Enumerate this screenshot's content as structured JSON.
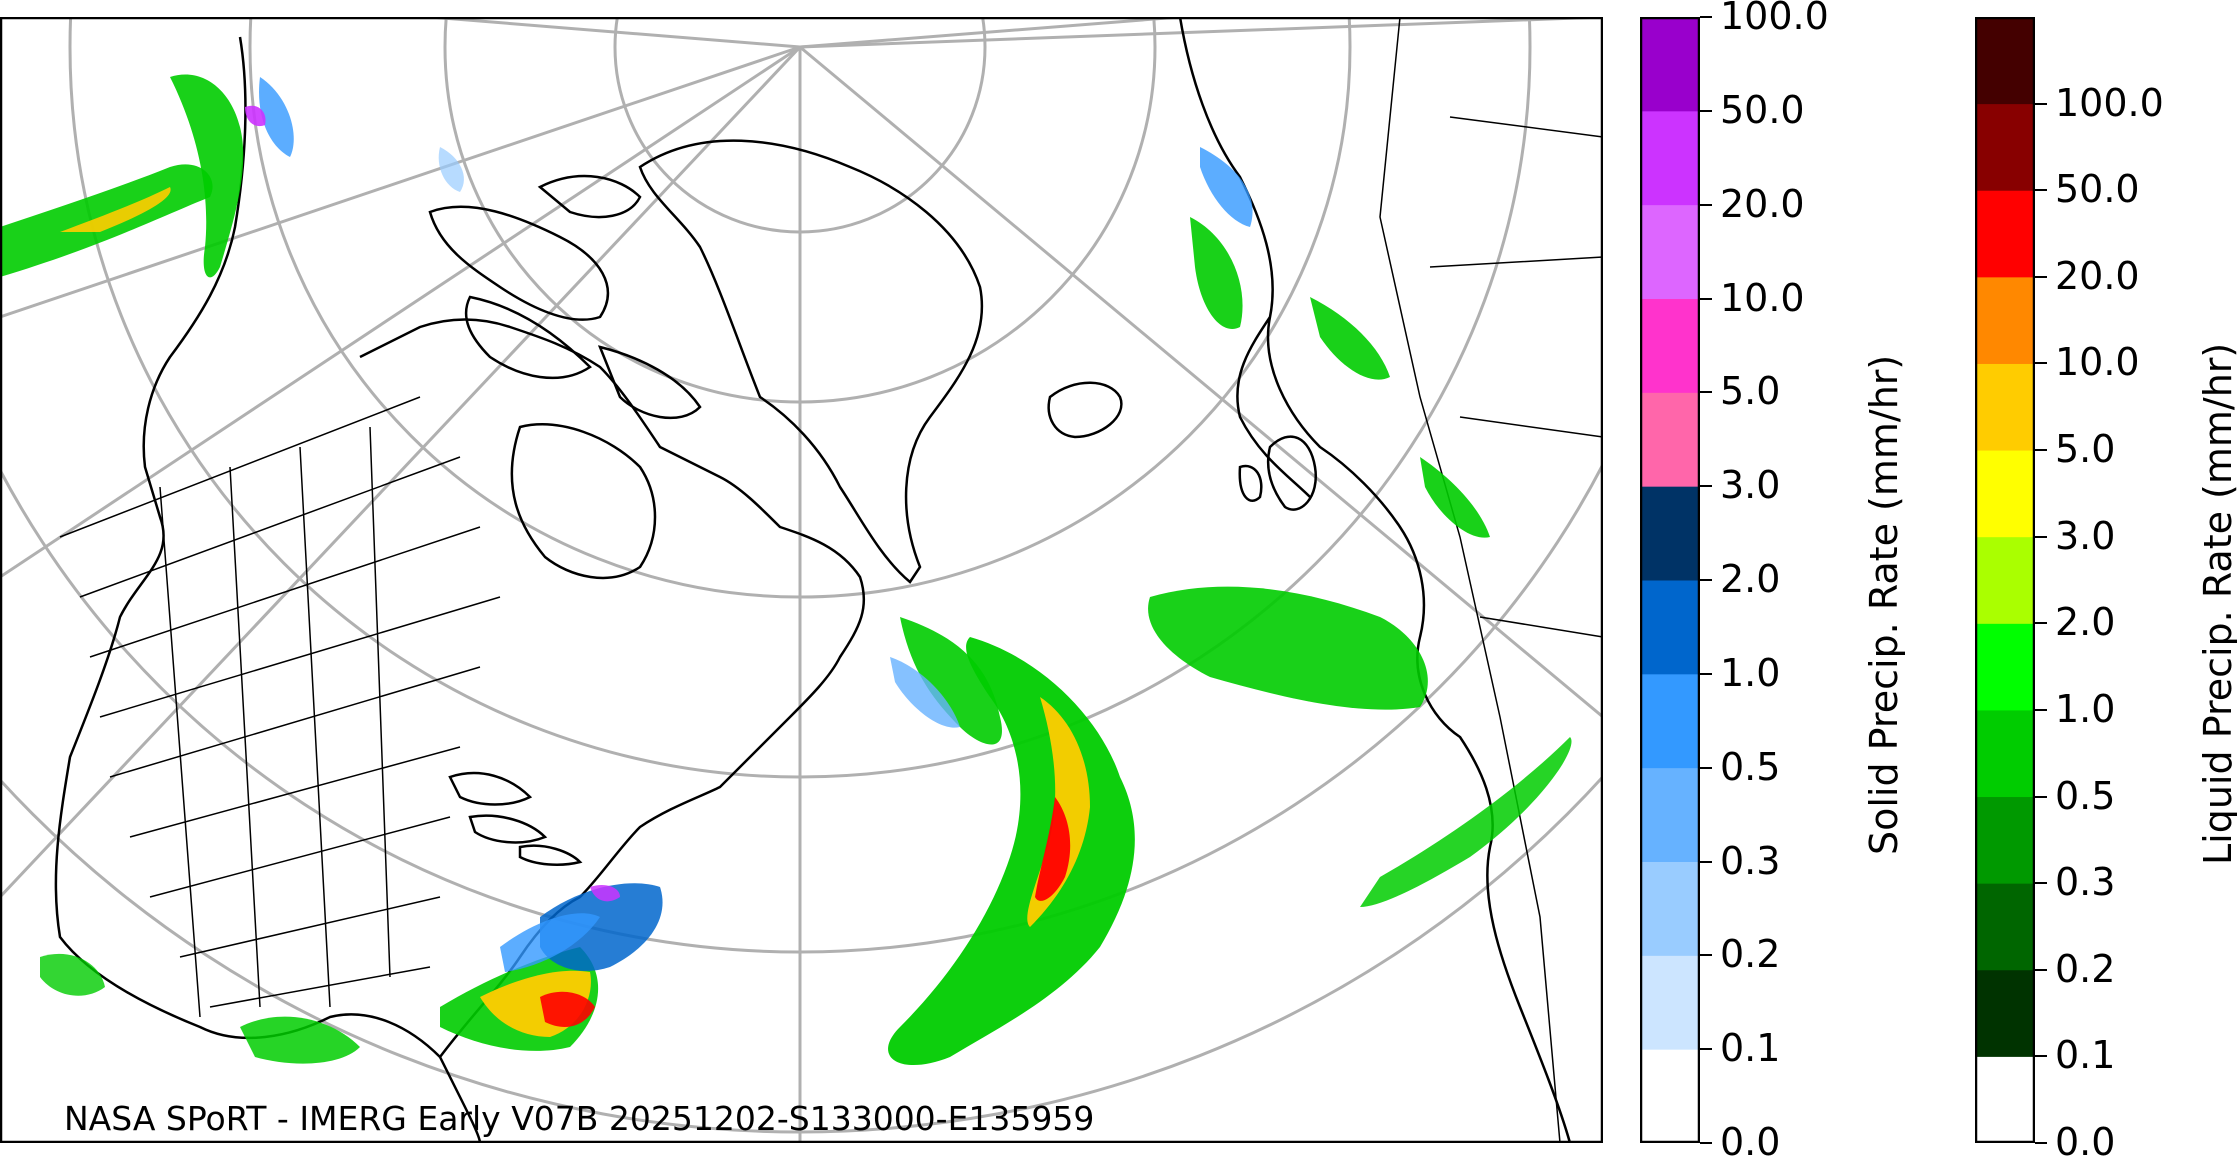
{
  "caption": "NASA SPoRT - IMERG Early V07B 20251202-S133000-E135959",
  "map": {
    "projection": "polar stereographic",
    "graticule": "on",
    "coastline_color": "#000000",
    "grid_color": "#b0b0b0"
  },
  "colorbars": {
    "solid": {
      "title": "Solid Precip. Rate (mm/hr)",
      "ticks": [
        "0.0",
        "0.1",
        "0.2",
        "0.3",
        "0.5",
        "1.0",
        "2.0",
        "3.0",
        "5.0",
        "10.0",
        "20.0",
        "50.0",
        "100.0"
      ],
      "colors": [
        "#ffffff",
        "#cce5ff",
        "#99ccff",
        "#66b2ff",
        "#3399ff",
        "#0066cc",
        "#003366",
        "#ff66aa",
        "#ff33cc",
        "#dd66ff",
        "#cc33ff",
        "#9900cc"
      ]
    },
    "liquid": {
      "title": "Liquid Precip. Rate (mm/hr)",
      "ticks": [
        "0.0",
        "0.1",
        "0.2",
        "0.3",
        "0.5",
        "1.0",
        "2.0",
        "3.0",
        "5.0",
        "10.0",
        "20.0",
        "50.0",
        "100.0"
      ],
      "colors": [
        "#ffffff",
        "#003300",
        "#006600",
        "#009900",
        "#00cc00",
        "#00ff00",
        "#aaff00",
        "#ffff00",
        "#ffcc00",
        "#ff8800",
        "#ff0000",
        "#880000",
        "#440000"
      ]
    }
  }
}
